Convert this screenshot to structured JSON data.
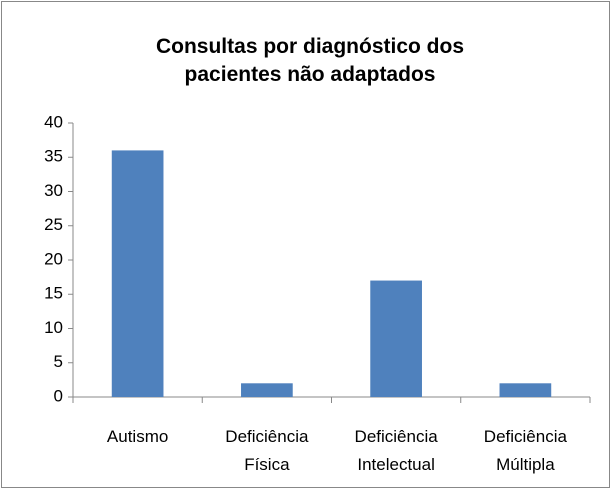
{
  "chart_data": {
    "type": "bar",
    "title": "Consultas por diagnóstico dos pacientes não adaptados",
    "categories": [
      "Autismo",
      "Deficiência Física",
      "Deficiência Intelectual",
      "Deficiência Múltipla"
    ],
    "values": [
      36,
      2,
      17,
      2
    ],
    "color": "#4f81bd",
    "ylim": [
      0,
      40
    ],
    "yticks": [
      0,
      5,
      10,
      15,
      20,
      25,
      30,
      35,
      40
    ],
    "grid": false
  }
}
